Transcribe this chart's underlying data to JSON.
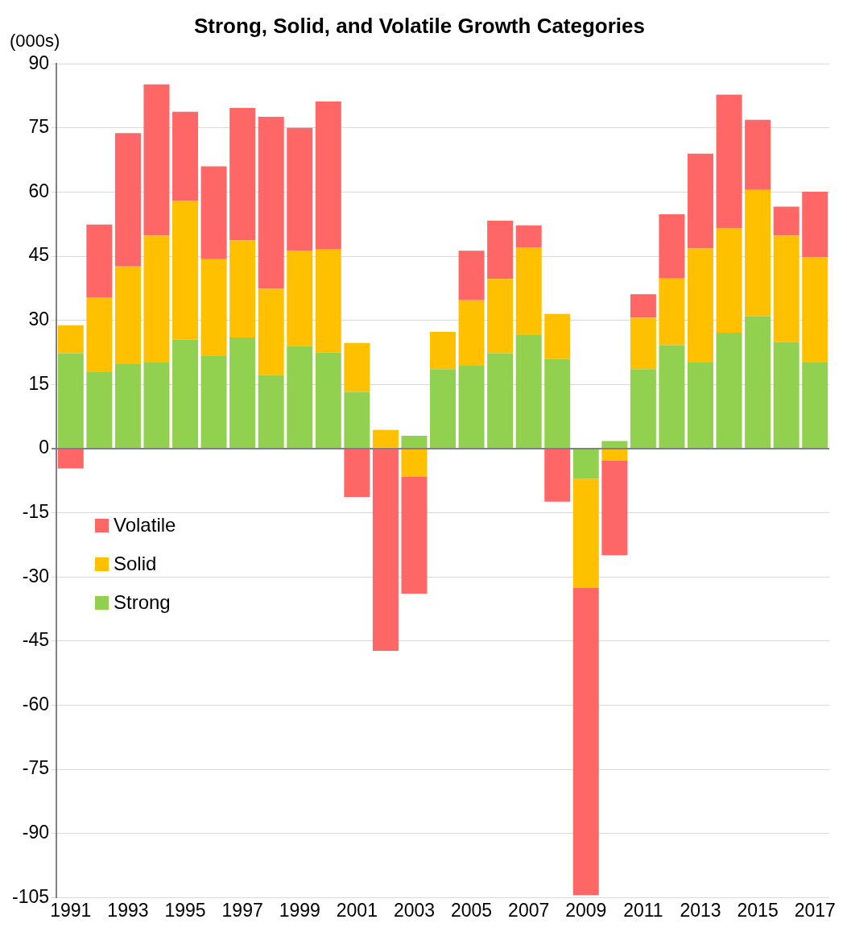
{
  "chart_data": {
    "type": "bar",
    "title": "Strong, Solid, and Volatile Growth Categories",
    "ylabel": "(000s)",
    "categories": [
      "1991",
      null,
      "1993",
      null,
      "1995",
      null,
      "1997",
      null,
      "1999",
      null,
      "2001",
      null,
      "2003",
      null,
      "2005",
      null,
      "2007",
      null,
      "2009",
      null,
      "2011",
      null,
      "2013",
      null,
      "2015",
      null,
      "2017"
    ],
    "stacked": true,
    "series": [
      {
        "name": "Strong",
        "color": "#92d050",
        "values": [
          22.3,
          17.9,
          19.9,
          20.3,
          25.5,
          21.8,
          26,
          17.2,
          24,
          22.5,
          13.3,
          0.3,
          3,
          18.6,
          19.4,
          22.3,
          26.7,
          21,
          -7,
          1.8,
          18.6,
          24.2,
          20.3,
          27.1,
          31,
          24.9,
          20.3
        ]
      },
      {
        "name": "Solid",
        "color": "#ffc000",
        "values": [
          6.5,
          17.5,
          22.7,
          29.5,
          32.4,
          22.5,
          22.7,
          20.2,
          22.3,
          24.2,
          11.4,
          4.1,
          -6.5,
          8.7,
          15.3,
          17.4,
          20.3,
          10.5,
          -25.5,
          -2.8,
          12,
          15.6,
          26.5,
          24.4,
          29.5,
          24.9,
          24.5
        ]
      },
      {
        "name": "Volatile",
        "color": "#ff6666",
        "values": [
          -4.6,
          17,
          31.2,
          35.4,
          20.9,
          21.7,
          31,
          40.2,
          28.7,
          34.5,
          -11.3,
          -47.3,
          -27.4,
          null,
          11.6,
          13.6,
          5.2,
          -12.4,
          -71.9,
          -22.1,
          5.5,
          15,
          22.2,
          31.3,
          16.4,
          6.8,
          15.3
        ]
      }
    ],
    "ylim": [
      -105,
      90
    ],
    "yticks": [
      -105,
      -90,
      -75,
      -60,
      -45,
      -30,
      -15,
      0,
      15,
      30,
      45,
      60,
      75,
      90
    ],
    "grid": "y",
    "legend": "left"
  }
}
